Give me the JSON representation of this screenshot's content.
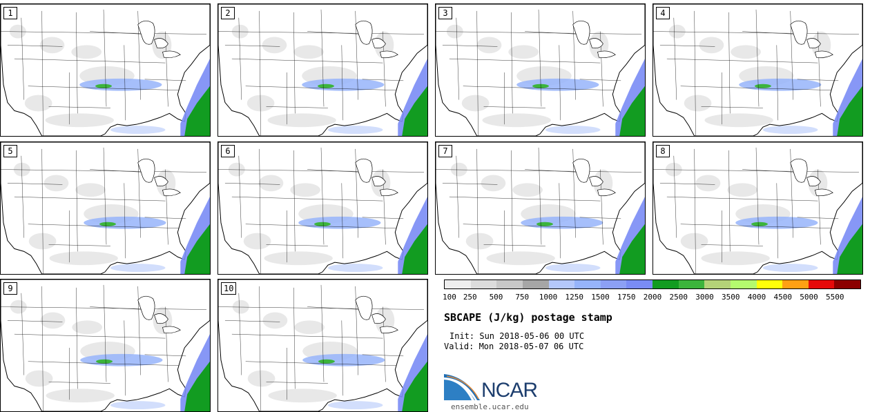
{
  "panels": [
    {
      "label": "1"
    },
    {
      "label": "2"
    },
    {
      "label": "3"
    },
    {
      "label": "4"
    },
    {
      "label": "5"
    },
    {
      "label": "6"
    },
    {
      "label": "7"
    },
    {
      "label": "8"
    },
    {
      "label": "9"
    },
    {
      "label": "10"
    }
  ],
  "colorbar": {
    "colors": [
      "#eeeeee",
      "#dcdcdc",
      "#c8c8c8",
      "#a6a6a6",
      "#b4c8fa",
      "#96b4fa",
      "#8ca0f5",
      "#7a8cf5",
      "#129c21",
      "#3cb43c",
      "#b4d278",
      "#b4fa6e",
      "#ffff0a",
      "#ffa014",
      "#e60a0a",
      "#8c0000"
    ],
    "labels": [
      "100",
      "250",
      "500",
      "750",
      "1000",
      "1250",
      "1500",
      "1750",
      "2000",
      "2500",
      "3000",
      "3500",
      "4000",
      "4500",
      "5000",
      "5500"
    ]
  },
  "title": "SBCAPE (J/kg) postage stamp",
  "init": "Init: Sun 2018-05-06 00 UTC",
  "valid": "Valid: Mon 2018-05-07 06 UTC",
  "logo": {
    "text": "NCAR",
    "color": "#1d3e6e",
    "accent": "#1f6fb5"
  },
  "site": "ensemble.ucar.edu"
}
